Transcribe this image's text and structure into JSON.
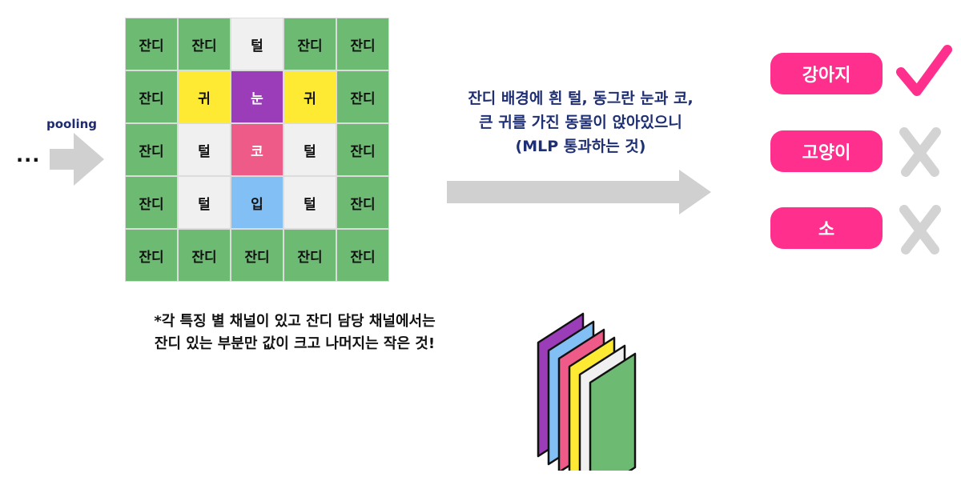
{
  "left": {
    "ellipsis": "...",
    "pooling_label": "pooling"
  },
  "grid": {
    "rows": [
      [
        {
          "t": "잔디",
          "c": "grass"
        },
        {
          "t": "잔디",
          "c": "grass"
        },
        {
          "t": "털",
          "c": "white"
        },
        {
          "t": "잔디",
          "c": "grass"
        },
        {
          "t": "잔디",
          "c": "grass"
        }
      ],
      [
        {
          "t": "잔디",
          "c": "grass"
        },
        {
          "t": "귀",
          "c": "yellow"
        },
        {
          "t": "눈",
          "c": "purple"
        },
        {
          "t": "귀",
          "c": "yellow"
        },
        {
          "t": "잔디",
          "c": "grass"
        }
      ],
      [
        {
          "t": "잔디",
          "c": "grass"
        },
        {
          "t": "털",
          "c": "white"
        },
        {
          "t": "코",
          "c": "pink"
        },
        {
          "t": "털",
          "c": "white"
        },
        {
          "t": "잔디",
          "c": "grass"
        }
      ],
      [
        {
          "t": "잔디",
          "c": "grass"
        },
        {
          "t": "털",
          "c": "white"
        },
        {
          "t": "입",
          "c": "blue"
        },
        {
          "t": "털",
          "c": "white"
        },
        {
          "t": "잔디",
          "c": "grass"
        }
      ],
      [
        {
          "t": "잔디",
          "c": "grass"
        },
        {
          "t": "잔디",
          "c": "grass"
        },
        {
          "t": "잔디",
          "c": "grass"
        },
        {
          "t": "잔디",
          "c": "grass"
        },
        {
          "t": "잔디",
          "c": "grass"
        }
      ]
    ]
  },
  "description": {
    "lines": [
      "잔디 배경에 흰 털, 동그란 눈과 코,",
      "큰 귀를 가진 동물이 앉아있으니",
      "(MLP 통과하는 것)"
    ]
  },
  "classes": [
    {
      "label": "강아지",
      "mark": "check-icon"
    },
    {
      "label": "고양이",
      "mark": "cross-icon"
    },
    {
      "label": "소",
      "mark": "cross-icon"
    }
  ],
  "note": {
    "lines": [
      "*각 특징 별 채널이 있고 잔디 담당 채널에서는",
      "잔디 있는 부분만 값이 크고 나머지는 작은 것!"
    ]
  },
  "colors": {
    "grass": "#6dbb73",
    "accent_pink": "#ff2f8d",
    "text_navy": "#1f2f74",
    "arrow_gray": "#d0d0d0",
    "check": "#ff2f8d",
    "cross": "#d3d3d3",
    "channels": [
      "#9b3db8",
      "#82bff4",
      "#ef5b88",
      "#ffea33",
      "#f0f0f0",
      "#6dbb73"
    ]
  }
}
